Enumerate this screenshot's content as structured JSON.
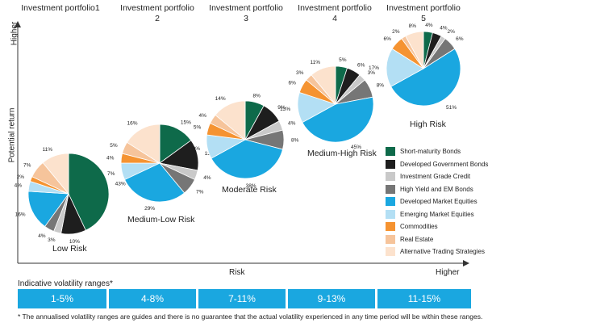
{
  "chart_data": {
    "type": "pie",
    "y_axis": {
      "label": "Potential return",
      "end_label": "Higher"
    },
    "x_axis": {
      "label": "Risk",
      "end_label": "Higher"
    },
    "categories": [
      "Short-maturity Bonds",
      "Developed Government Bonds",
      "Investment Grade Credit",
      "High Yield and EM Bonds",
      "Developed Market Equities",
      "Emerging Market Equities",
      "Commodities",
      "Real Estate",
      "Alternative Trading Strategies"
    ],
    "colors": [
      "#0e6a4a",
      "#1e1e1e",
      "#c9c9c9",
      "#767676",
      "#1aa7e0",
      "#b3dff4",
      "#f59331",
      "#f6c49b",
      "#fce2cd"
    ],
    "portfolios": [
      {
        "title": "Investment portfolio1",
        "risk": "Low Risk",
        "values": [
          43,
          10,
          3,
          4,
          16,
          4,
          2,
          7,
          11
        ]
      },
      {
        "title": "Investment portfolio 2",
        "risk": "Medium-Low Risk",
        "values": [
          15,
          13,
          4,
          7,
          29,
          7,
          4,
          5,
          16
        ]
      },
      {
        "title": "Investment portfolio 3",
        "risk": "Moderate Risk",
        "values": [
          8,
          9,
          4,
          8,
          38,
          10,
          5,
          4,
          14
        ]
      },
      {
        "title": "Investment portfolio 4",
        "risk": "Medium-High Risk",
        "values": [
          5,
          6,
          3,
          8,
          45,
          13,
          6,
          3,
          11
        ]
      },
      {
        "title": "Investment portfolio 5",
        "risk": "High Risk",
        "values": [
          4,
          4,
          2,
          6,
          51,
          17,
          6,
          2,
          8
        ]
      }
    ]
  },
  "volatility": {
    "title": "Indicative volatility ranges*",
    "ranges": [
      "1-5%",
      "4-8%",
      "7-11%",
      "9-13%",
      "11-15%"
    ],
    "footnote": "* The annualised volatility ranges are guides and there is no guarantee that the actual volatility experienced in any time period will be within these ranges."
  }
}
